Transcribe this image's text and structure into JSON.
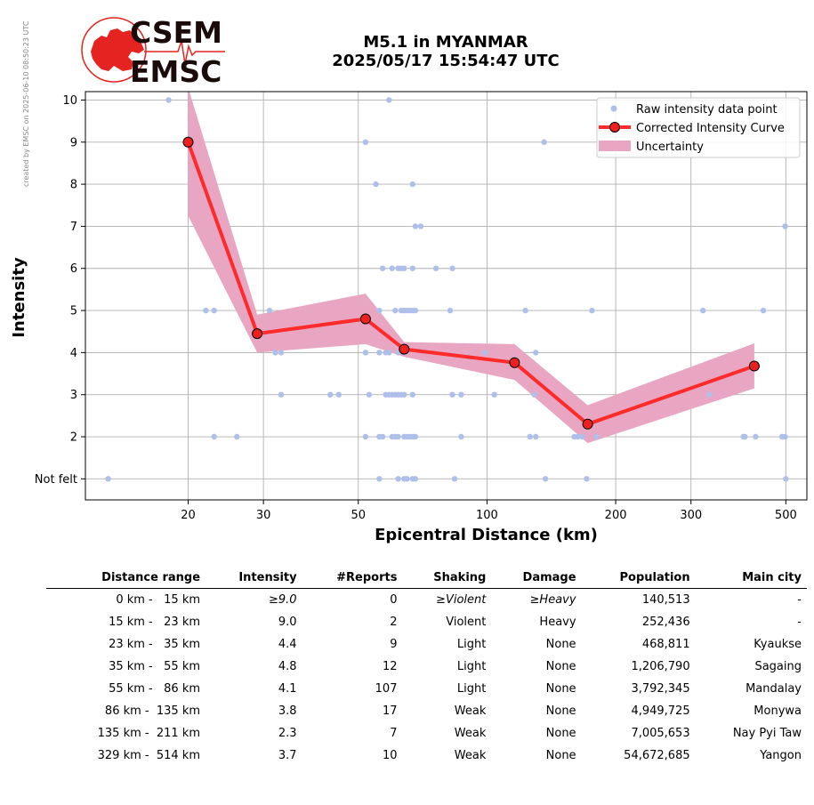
{
  "watermark": "created by EMSC on 2025-06-10 08:50:23 UTC",
  "logo": {
    "top_text": "CSEM",
    "bottom_text": "EMSC",
    "colors": {
      "red": "#e52421",
      "dark": "#1b0a0a"
    }
  },
  "title": {
    "line1": "M5.1 in MYANMAR",
    "line2": "2025/05/17 15:54:47 UTC"
  },
  "chart_data": {
    "type": "line",
    "title": "M5.1 in MYANMAR\n2025/05/17 15:54:47 UTC",
    "xlabel": "Epicentral Distance (km)",
    "ylabel": "Intensity",
    "x_scale": "log",
    "xlim": [
      11.5,
      560
    ],
    "ylim": [
      0.5,
      10.2
    ],
    "x_ticks": [
      20,
      30,
      50,
      100,
      200,
      300,
      500
    ],
    "x_tick_labels": [
      "20",
      "30",
      "50",
      "100",
      "200",
      "300",
      "500"
    ],
    "y_ticks": [
      1,
      2,
      3,
      4,
      5,
      6,
      7,
      8,
      9,
      10
    ],
    "y_tick_labels": [
      "Not felt",
      "2",
      "3",
      "4",
      "5",
      "6",
      "7",
      "8",
      "9",
      "10"
    ],
    "grid": true,
    "legend_position": "top-right",
    "legend": [
      "Raw intensity data point",
      "Corrected Intensity Curve",
      "Uncertainty"
    ],
    "colors": {
      "raw": "#aebfea",
      "curve": "#ff2a2a",
      "marker": "#ee1f1f",
      "band": "#e8a6c2",
      "grid": "#b0b0b0"
    },
    "corrected_curve": {
      "name": "Corrected Intensity Curve",
      "x": [
        20,
        29,
        52,
        64,
        116,
        172,
        422
      ],
      "y": [
        9.0,
        4.45,
        4.8,
        4.08,
        3.76,
        2.3,
        3.68
      ]
    },
    "uncertainty": {
      "name": "Uncertainty",
      "x": [
        20,
        29,
        52,
        64,
        116,
        172,
        422
      ],
      "upper": [
        10.3,
        4.9,
        5.4,
        4.25,
        4.2,
        2.75,
        4.22
      ],
      "lower": [
        7.25,
        4.0,
        4.2,
        3.9,
        3.35,
        1.85,
        3.15
      ]
    },
    "raw_points": {
      "name": "Raw intensity data point",
      "points": [
        [
          13,
          1
        ],
        [
          18,
          10
        ],
        [
          22,
          5
        ],
        [
          23,
          5
        ],
        [
          23,
          2
        ],
        [
          26,
          2
        ],
        [
          31,
          5
        ],
        [
          32,
          4
        ],
        [
          33,
          4
        ],
        [
          33,
          3
        ],
        [
          43,
          3
        ],
        [
          45,
          3
        ],
        [
          52,
          4
        ],
        [
          52,
          4
        ],
        [
          52,
          9
        ],
        [
          52,
          2
        ],
        [
          53,
          3
        ],
        [
          55,
          8
        ],
        [
          56,
          4
        ],
        [
          56,
          4
        ],
        [
          56,
          5
        ],
        [
          56,
          2
        ],
        [
          56,
          1
        ],
        [
          57,
          6
        ],
        [
          57,
          2
        ],
        [
          58,
          3
        ],
        [
          58,
          4
        ],
        [
          59,
          10
        ],
        [
          59,
          3
        ],
        [
          59,
          4
        ],
        [
          60,
          6
        ],
        [
          60,
          2
        ],
        [
          60,
          3
        ],
        [
          61,
          5
        ],
        [
          61,
          3
        ],
        [
          61,
          2
        ],
        [
          62,
          6
        ],
        [
          62,
          4
        ],
        [
          62,
          3
        ],
        [
          62,
          2
        ],
        [
          62,
          1
        ],
        [
          63,
          5
        ],
        [
          63,
          3
        ],
        [
          63,
          6
        ],
        [
          64,
          5
        ],
        [
          64,
          4
        ],
        [
          64,
          3
        ],
        [
          64,
          2
        ],
        [
          64,
          1
        ],
        [
          64,
          6
        ],
        [
          65,
          5
        ],
        [
          65,
          1
        ],
        [
          65,
          2
        ],
        [
          66,
          5
        ],
        [
          66,
          2
        ],
        [
          67,
          8
        ],
        [
          67,
          6
        ],
        [
          67,
          5
        ],
        [
          67,
          3
        ],
        [
          67,
          2
        ],
        [
          67,
          1
        ],
        [
          68,
          7
        ],
        [
          68,
          2
        ],
        [
          68,
          5
        ],
        [
          68,
          1
        ],
        [
          70,
          7
        ],
        [
          76,
          6
        ],
        [
          82,
          5
        ],
        [
          83,
          6
        ],
        [
          83,
          3
        ],
        [
          84,
          1
        ],
        [
          87,
          3
        ],
        [
          87,
          2
        ],
        [
          99,
          4
        ],
        [
          104,
          3
        ],
        [
          123,
          5
        ],
        [
          126,
          2
        ],
        [
          129,
          3
        ],
        [
          130,
          2
        ],
        [
          130,
          4
        ],
        [
          136,
          9
        ],
        [
          137,
          1
        ],
        [
          160,
          2
        ],
        [
          163,
          2
        ],
        [
          167,
          2
        ],
        [
          171,
          1
        ],
        [
          176,
          5
        ],
        [
          180,
          2
        ],
        [
          320,
          5
        ],
        [
          331,
          3
        ],
        [
          398,
          2
        ],
        [
          401,
          2
        ],
        [
          425,
          2
        ],
        [
          443,
          5
        ],
        [
          490,
          2
        ],
        [
          498,
          7
        ],
        [
          498,
          2
        ],
        [
          500,
          1
        ]
      ]
    }
  },
  "table": {
    "headers": [
      "Distance range",
      "Intensity",
      "#Reports",
      "Shaking",
      "Damage",
      "Population",
      "Main city"
    ],
    "rows": [
      [
        "0 km -   15 km",
        "≥9.0",
        "0",
        "≥Violent",
        "≥Heavy",
        "140,513",
        "-"
      ],
      [
        "15 km -   23 km",
        "9.0",
        "2",
        "Violent",
        "Heavy",
        "252,436",
        "-"
      ],
      [
        "23 km -   35 km",
        "4.4",
        "9",
        "Light",
        "None",
        "468,811",
        "Kyaukse"
      ],
      [
        "35 km -   55 km",
        "4.8",
        "12",
        "Light",
        "None",
        "1,206,790",
        "Sagaing"
      ],
      [
        "55 km -   86 km",
        "4.1",
        "107",
        "Light",
        "None",
        "3,792,345",
        "Mandalay"
      ],
      [
        "86 km -  135 km",
        "3.8",
        "17",
        "Weak",
        "None",
        "4,949,725",
        "Monywa"
      ],
      [
        "135 km -  211 km",
        "2.3",
        "7",
        "Weak",
        "None",
        "7,005,653",
        "Nay Pyi Taw"
      ],
      [
        "329 km -  514 km",
        "3.7",
        "10",
        "Weak",
        "None",
        "54,672,685",
        "Yangon"
      ]
    ]
  }
}
